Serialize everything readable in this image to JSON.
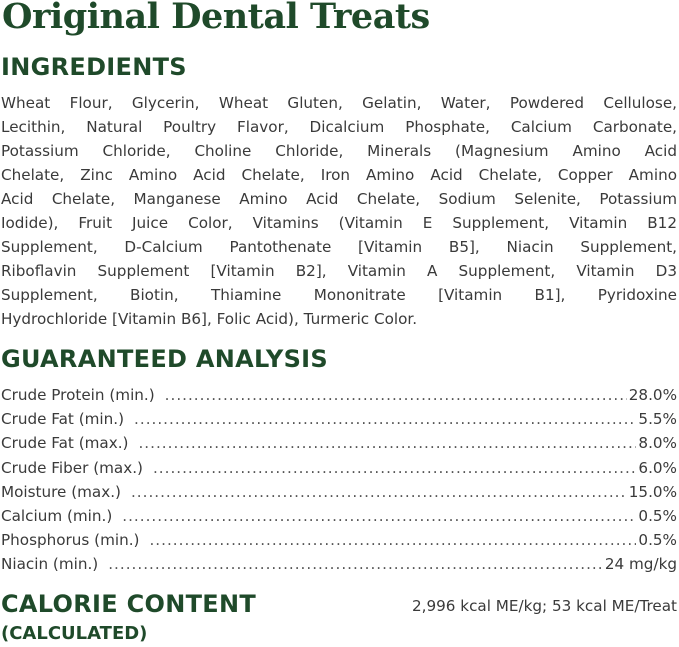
{
  "title": "Original Dental Treats",
  "ingredients": {
    "heading": "INGREDIENTS",
    "lines": [
      "Wheat Flour, Glycerin, Wheat Gluten, Gelatin, Water, Powdered Cellulose,",
      "Lecithin, Natural Poultry Flavor, Dicalcium Phosphate, Calcium Carbonate,",
      "Potassium Chloride, Choline Chloride, Minerals (Magnesium Amino Acid",
      "Chelate, Zinc Amino Acid Chelate, Iron Amino Acid Chelate, Copper Amino",
      "Acid Chelate, Manganese Amino Acid Chelate, Sodium Selenite, Potassium",
      "Iodide), Fruit Juice Color, Vitamins (Vitamin E Supplement, Vitamin B12",
      "Supplement, D-Calcium Pantothenate [Vitamin B5], Niacin Supplement,",
      "Riboflavin Supplement [Vitamin B2], Vitamin A Supplement, Vitamin D3",
      "Supplement, Biotin, Thiamine Mononitrate [Vitamin B1], Pyridoxine",
      "Hydrochloride [Vitamin B6], Folic Acid), Turmeric Color."
    ]
  },
  "analysis": {
    "heading": "GUARANTEED ANALYSIS",
    "rows": [
      {
        "label": "Crude Protein (min.)",
        "value": "28.0%"
      },
      {
        "label": "Crude Fat (min.)",
        "value": "5.5%"
      },
      {
        "label": "Crude Fat (max.)",
        "value": "8.0%"
      },
      {
        "label": "Crude Fiber (max.)",
        "value": "6.0%"
      },
      {
        "label": "Moisture (max.)",
        "value": "15.0%"
      },
      {
        "label": "Calcium (min.)",
        "value": "0.5%"
      },
      {
        "label": "Phosphorus (min.)",
        "value": "0.5%"
      },
      {
        "label": "Niacin (min.)",
        "value": "24 mg/kg"
      }
    ]
  },
  "calorie": {
    "heading": "CALORIE CONTENT",
    "subheading": "(CALCULATED)",
    "value": "2,996 kcal ME/kg; 53 kcal ME/Treat"
  },
  "colors": {
    "heading_green": "#1f4a2a",
    "body_text": "#3a3a3a"
  }
}
